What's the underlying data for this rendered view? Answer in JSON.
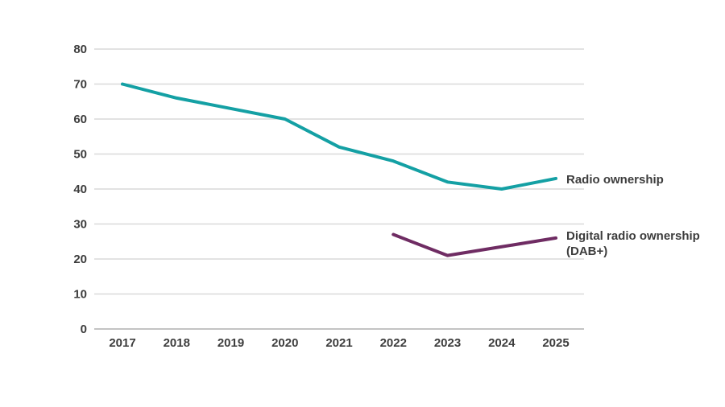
{
  "chart_data": {
    "type": "line",
    "title": "",
    "xlabel": "",
    "ylabel": "",
    "x_categories": [
      "2017",
      "2018",
      "2019",
      "2020",
      "2021",
      "2022",
      "2023",
      "2024",
      "2025"
    ],
    "ylim": [
      0,
      80
    ],
    "ytick_step": 10,
    "ytick_labels": [
      "0",
      "10",
      "20",
      "30",
      "40",
      "50",
      "60",
      "70",
      "80"
    ],
    "grid": true,
    "legend_position": "line-end-labels",
    "series": [
      {
        "name": "Radio ownership",
        "color": "#14a0a4",
        "x": [
          "2017",
          "2018",
          "2019",
          "2020",
          "2021",
          "2022",
          "2023",
          "2024",
          "2025"
        ],
        "values": [
          70,
          66,
          63,
          60,
          52,
          48,
          42,
          40,
          43
        ]
      },
      {
        "name": "Digital radio ownership (DAB+)",
        "color": "#6f2c63",
        "x": [
          "2022",
          "2023",
          "2024",
          "2025"
        ],
        "values": [
          27,
          21,
          23.5,
          26
        ]
      }
    ]
  },
  "annotations": {
    "radio_label": "Radio ownership",
    "digital_label_line1": "Digital radio ownership",
    "digital_label_line2": "(DAB+)"
  },
  "colors": {
    "radio_line": "#14a0a4",
    "digital_line": "#6f2c63",
    "gridline": "#d9d9d9",
    "axis_line": "#c3c3c3",
    "text": "#3d3d3d"
  }
}
